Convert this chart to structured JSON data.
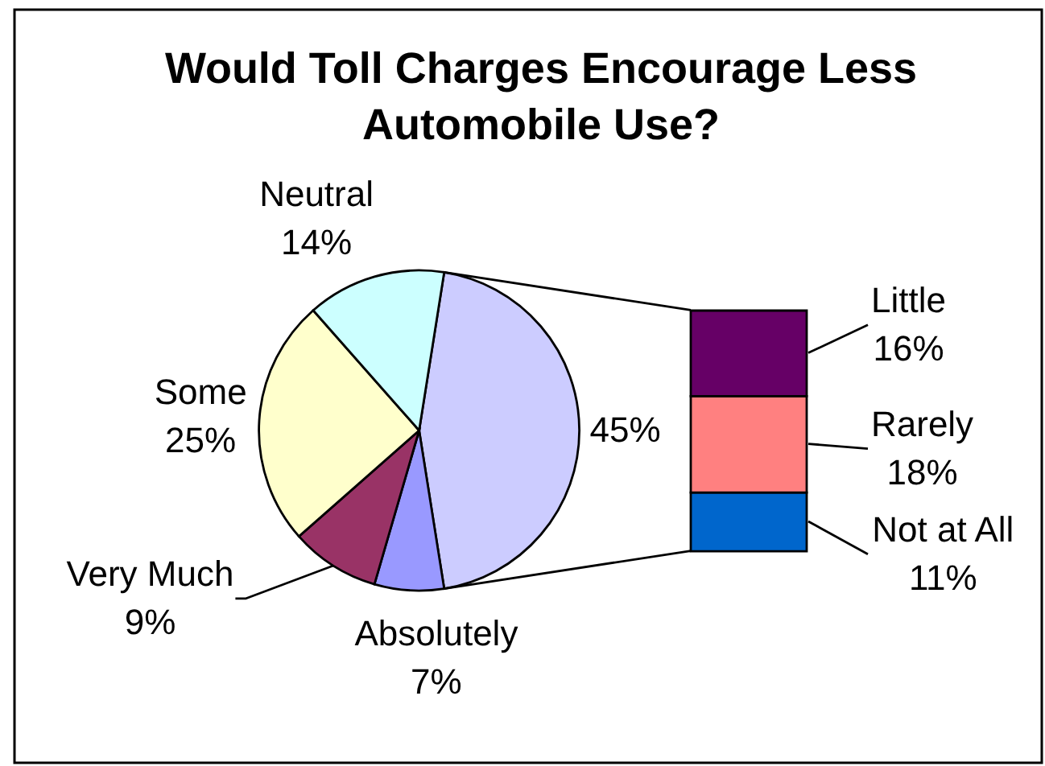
{
  "chart_data": [
    {
      "type": "pie",
      "title": "Would Toll Charges Encourage Less Automobile Use?",
      "categories": [
        null,
        "Absolutely",
        "Very Much",
        "Some",
        "Neutral"
      ],
      "values": [
        45,
        7,
        9,
        25,
        14
      ],
      "value_labels": [
        "45%",
        "7%",
        "9%",
        "25%",
        "14%"
      ],
      "colors": [
        "#ccccff",
        "#9999ff",
        "#993366",
        "#ffffcc",
        "#ccffff"
      ]
    },
    {
      "type": "bar",
      "stacked": true,
      "categories": [
        null
      ],
      "series": [
        {
          "name": "Not at All",
          "color": "#0066cc",
          "values": [
            11
          ],
          "value_labels": [
            "11%"
          ]
        },
        {
          "name": "Rarely",
          "color": "#ff8080",
          "values": [
            18
          ],
          "value_labels": [
            "18%"
          ]
        },
        {
          "name": "Little",
          "color": "#660066",
          "values": [
            16
          ],
          "value_labels": [
            "16%"
          ]
        }
      ],
      "tick_labels": false
    }
  ]
}
